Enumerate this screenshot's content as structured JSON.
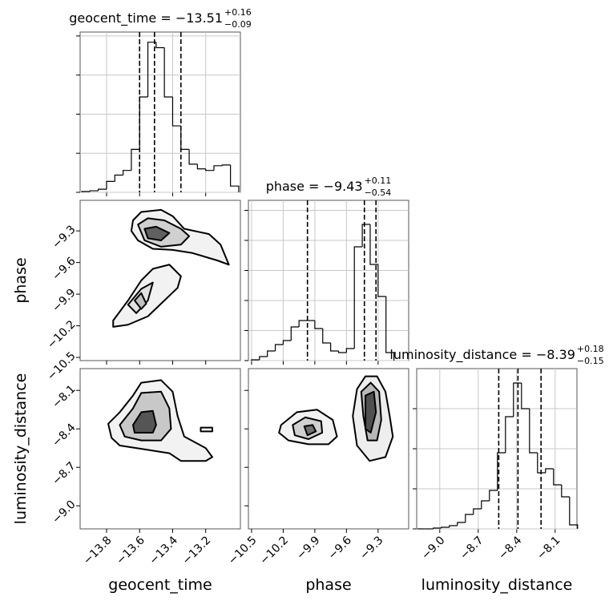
{
  "chart_data": [
    {
      "type": "histogram",
      "title": "geocent_time = −13.51",
      "title_upper": "+0.16",
      "title_lower": "−0.09",
      "bins": [
        -13.95,
        -13.9,
        -13.85,
        -13.8,
        -13.75,
        -13.7,
        -13.65,
        -13.6,
        -13.55,
        -13.5,
        -13.45,
        -13.4,
        -13.35,
        -13.3,
        -13.25,
        -13.2,
        -13.15,
        -13.1,
        -13.05,
        -13.0
      ],
      "values": [
        1,
        2,
        4,
        14,
        22,
        28,
        55,
        122,
        192,
        185,
        122,
        85,
        55,
        36,
        30,
        28,
        34,
        35,
        8
      ],
      "quantiles": [
        -13.6,
        -13.51,
        -13.35
      ],
      "color": "#000000",
      "xlim": [
        -13.96,
        -12.99
      ],
      "xticks": [
        -13.8,
        -13.6,
        -13.4,
        -13.2
      ],
      "xtick_labels": false,
      "ylim": [
        0,
        205
      ],
      "yticks": [
        0,
        50,
        100,
        150,
        200
      ],
      "ytick_labels": false,
      "grid": true
    },
    {
      "type": "contour",
      "contours": [
        {
          "x": [
            -13.64,
            -13.59,
            -13.47,
            -13.4,
            -13.33,
            -13.18,
            -13.11,
            -13.06,
            -13.13,
            -13.28,
            -13.4,
            -13.52,
            -13.61,
            -13.65
          ],
          "y": [
            -9.2,
            -9.12,
            -9.1,
            -9.16,
            -9.28,
            -9.33,
            -9.43,
            -9.62,
            -9.58,
            -9.51,
            -9.48,
            -9.47,
            -9.39,
            -9.3
          ],
          "fill": "#f2f2f2"
        },
        {
          "x": [
            -13.61,
            -13.55,
            -13.45,
            -13.35,
            -13.3,
            -13.35,
            -13.47,
            -13.57
          ],
          "y": [
            -9.24,
            -9.18,
            -9.2,
            -9.28,
            -9.35,
            -9.43,
            -9.45,
            -9.39
          ],
          "fill": "#d0d0d0"
        },
        {
          "x": [
            -13.57,
            -13.5,
            -13.42,
            -13.47,
            -13.55
          ],
          "y": [
            -9.28,
            -9.26,
            -9.32,
            -9.39,
            -9.37
          ],
          "fill": "#606060"
        },
        {
          "x": [
            -13.76,
            -13.67,
            -13.59,
            -13.52,
            -13.42,
            -13.35,
            -13.37,
            -13.45,
            -13.55,
            -13.67,
            -13.76
          ],
          "y": [
            -10.15,
            -9.96,
            -9.77,
            -9.66,
            -9.62,
            -9.73,
            -9.84,
            -9.96,
            -10.11,
            -10.19,
            -10.21
          ],
          "fill": "#f2f2f2"
        },
        {
          "x": [
            -13.67,
            -13.59,
            -13.52,
            -13.55,
            -13.62
          ],
          "y": [
            -10.0,
            -9.85,
            -9.79,
            -9.96,
            -10.08
          ],
          "fill": "#e0e0e0"
        },
        {
          "x": [
            -13.63,
            -13.59,
            -13.56,
            -13.59
          ],
          "y": [
            -9.96,
            -9.89,
            -9.99,
            -10.04
          ],
          "fill": "#c0c0c0"
        }
      ],
      "xlim": [
        -13.96,
        -12.99
      ],
      "xticks": [
        -13.8,
        -13.6,
        -13.4,
        -13.2
      ],
      "xtick_labels": false,
      "ylim": [
        -10.53,
        -9.01
      ],
      "yticks": [
        {
          "value": -10.5,
          "label": "−10.5"
        },
        {
          "value": -10.2,
          "label": "−10.2"
        },
        {
          "value": -9.9,
          "label": "−9.9"
        },
        {
          "value": -9.6,
          "label": "−9.6"
        },
        {
          "value": -9.3,
          "label": "−9.3"
        }
      ],
      "ytick_labels": true,
      "ylabel": "phase",
      "grid": false
    },
    {
      "type": "histogram",
      "title": "phase = −9.43",
      "title_upper": "+0.11",
      "title_lower": "−0.54",
      "bins": [
        -10.5,
        -10.425,
        -10.35,
        -10.275,
        -10.2,
        -10.125,
        -10.05,
        -9.975,
        -9.9,
        -9.825,
        -9.75,
        -9.675,
        -9.6,
        -9.525,
        -9.45,
        -9.375,
        -9.3,
        -9.225,
        -9.15
      ],
      "values": [
        1,
        5,
        12,
        20,
        25,
        42,
        50,
        50,
        40,
        22,
        12,
        10,
        15,
        142,
        170,
        120,
        80,
        10
      ],
      "quantiles": [
        -9.97,
        -9.43,
        -9.32
      ],
      "color": "#000000",
      "xlim": [
        -10.53,
        -9.01
      ],
      "xticks": [
        -10.5,
        -10.2,
        -9.9,
        -9.6,
        -9.3
      ],
      "xtick_labels": false,
      "ylim": [
        0,
        200
      ],
      "yticks": [
        0,
        37.5,
        75,
        112.5,
        150,
        187.5
      ],
      "ytick_labels": false,
      "grid": true
    },
    {
      "type": "contour",
      "contours": [
        {
          "x": [
            -13.79,
            -13.72,
            -13.64,
            -13.59,
            -13.47,
            -13.4,
            -13.37,
            -13.33,
            -13.2,
            -13.16,
            -13.2,
            -13.35,
            -13.42,
            -13.57,
            -13.72,
            -13.77
          ],
          "y": [
            -8.36,
            -8.27,
            -8.14,
            -8.04,
            -8.02,
            -8.11,
            -8.3,
            -8.46,
            -8.55,
            -8.62,
            -8.65,
            -8.65,
            -8.59,
            -8.56,
            -8.53,
            -8.47
          ],
          "fill": "#f2f2f2"
        },
        {
          "x": [
            -13.72,
            -13.64,
            -13.59,
            -13.47,
            -13.42,
            -13.41,
            -13.47,
            -13.59,
            -13.69
          ],
          "y": [
            -8.37,
            -8.24,
            -8.12,
            -8.11,
            -8.24,
            -8.4,
            -8.49,
            -8.49,
            -8.46
          ],
          "fill": "#c8c8c8"
        },
        {
          "x": [
            -13.64,
            -13.59,
            -13.52,
            -13.5,
            -13.52,
            -13.63
          ],
          "y": [
            -8.37,
            -8.27,
            -8.26,
            -8.37,
            -8.43,
            -8.43
          ],
          "fill": "#555555"
        },
        {
          "x": [
            -13.23,
            -13.16,
            -13.16,
            -13.23
          ],
          "y": [
            -8.39,
            -8.39,
            -8.42,
            -8.42
          ],
          "fill": "#ffffff"
        }
      ],
      "xlim": [
        -13.96,
        -12.99
      ],
      "xticks": [
        {
          "value": -13.8,
          "label": "−13.8"
        },
        {
          "value": -13.6,
          "label": "−13.6"
        },
        {
          "value": -13.4,
          "label": "−13.4"
        },
        {
          "value": -13.2,
          "label": "−13.2"
        }
      ],
      "xtick_labels": true,
      "ylim": [
        -9.18,
        -7.93
      ],
      "yticks": [
        {
          "value": -9.0,
          "label": "−9.0"
        },
        {
          "value": -8.7,
          "label": "−8.7"
        },
        {
          "value": -8.4,
          "label": "−8.4"
        },
        {
          "value": -8.1,
          "label": "−8.1"
        }
      ],
      "ytick_labels": true,
      "xlabel": "geocent_time",
      "ylabel": "luminosity_distance",
      "grid": false
    },
    {
      "type": "contour",
      "contours": [
        {
          "x": [
            -10.22,
            -10.07,
            -9.88,
            -9.73,
            -9.69,
            -9.77,
            -9.96,
            -10.15,
            -10.24
          ],
          "y": [
            -8.37,
            -8.27,
            -8.25,
            -8.33,
            -8.46,
            -8.52,
            -8.52,
            -8.49,
            -8.43
          ],
          "fill": "#f2f2f2"
        },
        {
          "x": [
            -10.11,
            -9.99,
            -9.84,
            -9.83,
            -9.96,
            -10.09
          ],
          "y": [
            -8.37,
            -8.31,
            -8.34,
            -8.43,
            -8.48,
            -8.45
          ],
          "fill": "#d0d0d0"
        },
        {
          "x": [
            -10.0,
            -9.92,
            -9.89,
            -9.97
          ],
          "y": [
            -8.38,
            -8.37,
            -8.42,
            -8.45
          ],
          "fill": "#707070"
        },
        {
          "x": [
            -9.5,
            -9.42,
            -9.31,
            -9.23,
            -9.19,
            -9.16,
            -9.23,
            -9.38,
            -9.5,
            -9.54
          ],
          "y": [
            -8.09,
            -7.99,
            -7.99,
            -8.11,
            -8.3,
            -8.46,
            -8.62,
            -8.65,
            -8.53,
            -8.3
          ],
          "fill": "#eeeeee"
        },
        {
          "x": [
            -9.46,
            -9.37,
            -9.29,
            -9.27,
            -9.31,
            -9.4,
            -9.44
          ],
          "y": [
            -8.11,
            -8.04,
            -8.11,
            -8.33,
            -8.49,
            -8.49,
            -8.3
          ],
          "fill": "#b8b8b8"
        },
        {
          "x": [
            -9.42,
            -9.34,
            -9.32,
            -9.37,
            -9.42
          ],
          "y": [
            -8.14,
            -8.11,
            -8.27,
            -8.43,
            -8.4
          ],
          "fill": "#505050"
        }
      ],
      "xlim": [
        -10.53,
        -9.01
      ],
      "xticks": [
        {
          "value": -10.5,
          "label": "−10.5"
        },
        {
          "value": -10.2,
          "label": "−10.2"
        },
        {
          "value": -9.9,
          "label": "−9.9"
        },
        {
          "value": -9.6,
          "label": "−9.6"
        },
        {
          "value": -9.3,
          "label": "−9.3"
        }
      ],
      "xtick_labels": true,
      "ylim": [
        -9.18,
        -7.93
      ],
      "yticks": [
        -9.0,
        -8.7,
        -8.4,
        -8.1
      ],
      "ytick_labels": false,
      "xlabel": "phase",
      "grid": false
    },
    {
      "type": "histogram",
      "title": "luminosity_distance = −8.39",
      "title_upper": "+0.18",
      "title_lower": "−0.15",
      "bins": [
        -9.175,
        -9.1125,
        -9.05,
        -8.9875,
        -8.925,
        -8.8625,
        -8.8,
        -8.7375,
        -8.675,
        -8.6125,
        -8.55,
        -8.4875,
        -8.425,
        -8.3625,
        -8.3,
        -8.2375,
        -8.175,
        -8.1125,
        -8.05,
        -7.9875,
        -7.925
      ],
      "values": [
        0,
        0,
        1,
        2,
        4,
        8,
        18,
        25,
        35,
        48,
        95,
        140,
        182,
        150,
        95,
        70,
        75,
        55,
        40,
        5
      ],
      "quantiles": [
        -8.54,
        -8.39,
        -8.21
      ],
      "color": "#000000",
      "xlim": [
        -9.18,
        -7.93
      ],
      "xticks": [
        {
          "value": -9.0,
          "label": "−9.0"
        },
        {
          "value": -8.7,
          "label": "−8.7"
        },
        {
          "value": -8.4,
          "label": "−8.4"
        },
        {
          "value": -8.1,
          "label": "−8.1"
        }
      ],
      "xtick_labels": true,
      "ylim": [
        0,
        200
      ],
      "yticks": [
        0,
        50,
        100,
        150
      ],
      "ytick_labels": false,
      "xlabel": "luminosity_distance",
      "grid": true
    }
  ]
}
